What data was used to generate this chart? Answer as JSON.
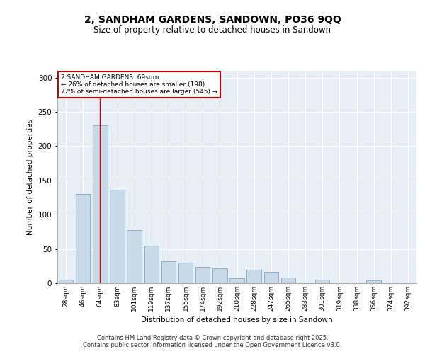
{
  "title": "2, SANDHAM GARDENS, SANDOWN, PO36 9QQ",
  "subtitle": "Size of property relative to detached houses in Sandown",
  "xlabel": "Distribution of detached houses by size in Sandown",
  "ylabel": "Number of detached properties",
  "categories": [
    "28sqm",
    "46sqm",
    "64sqm",
    "83sqm",
    "101sqm",
    "119sqm",
    "137sqm",
    "155sqm",
    "174sqm",
    "192sqm",
    "210sqm",
    "228sqm",
    "247sqm",
    "265sqm",
    "283sqm",
    "301sqm",
    "319sqm",
    "338sqm",
    "356sqm",
    "374sqm",
    "392sqm"
  ],
  "values": [
    5,
    130,
    230,
    136,
    78,
    55,
    32,
    30,
    24,
    22,
    7,
    20,
    17,
    8,
    0,
    5,
    0,
    0,
    4,
    0,
    0
  ],
  "bar_color": "#c9d9e8",
  "bar_edge_color": "#7aaac8",
  "highlight_index": 2,
  "highlight_line_color": "#cc0000",
  "annotation_box_color": "#cc0000",
  "annotation_text": "2 SANDHAM GARDENS: 69sqm\n← 26% of detached houses are smaller (198)\n72% of semi-detached houses are larger (545) →",
  "ylim": [
    0,
    310
  ],
  "yticks": [
    0,
    50,
    100,
    150,
    200,
    250,
    300
  ],
  "footer": "Contains HM Land Registry data © Crown copyright and database right 2025.\nContains public sector information licensed under the Open Government Licence v3.0.",
  "background_color": "#ffffff",
  "plot_bg_color": "#e8eef5",
  "grid_color": "#ffffff"
}
